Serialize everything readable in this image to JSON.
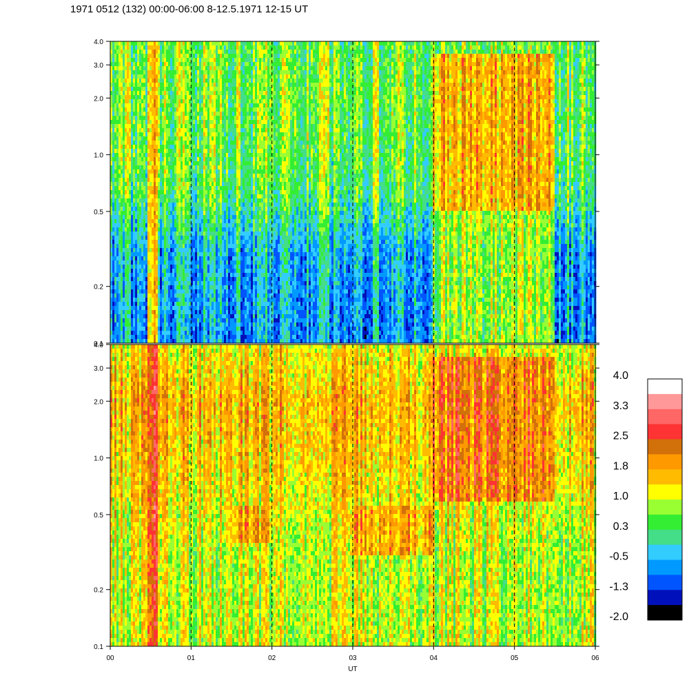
{
  "title": "1971 0512 (132) 00:00-06:00 8-12.5.1971  12-15 UT",
  "chart_data": {
    "type": "heatmap",
    "xlabel": "UT",
    "x_tick_labels": [
      "00",
      "01",
      "02",
      "03",
      "04",
      "05",
      "06"
    ],
    "x_ticks": [
      0,
      1,
      2,
      3,
      4,
      5,
      6
    ],
    "x_range": [
      0,
      6
    ],
    "y_scale": "log",
    "y_range": [
      0.1,
      4.0
    ],
    "y_ticks": [
      0.1,
      0.2,
      0.5,
      1.0,
      2.0,
      3.0,
      4.0
    ],
    "y_tick_labels": [
      "0.1",
      "0.2",
      "0.5",
      "1.0",
      "2.0",
      "3.0",
      "4.0"
    ],
    "vertical_dashed_lines_at": [
      1,
      2,
      3,
      4,
      5
    ],
    "colorbar": {
      "range": [
        -2.0,
        4.0
      ],
      "tick_labels": [
        "4.0",
        "3.3",
        "2.5",
        "1.8",
        "1.0",
        "0.3",
        "-0.5",
        "-1.3",
        "-2.0"
      ],
      "colors_top_to_bottom": [
        "#ffffff",
        "#ff9999",
        "#ff6666",
        "#ff3333",
        "#d2700a",
        "#ff9900",
        "#ffbb00",
        "#ffff00",
        "#99ff33",
        "#33ee33",
        "#44dd88",
        "#33ccff",
        "#0099ff",
        "#0055ff",
        "#0011bb",
        "#000000"
      ]
    },
    "panels": [
      {
        "name": "upper",
        "background_levels": [
          {
            "y": 0.1,
            "level": -0.6
          },
          {
            "y": 0.3,
            "level": -0.4
          },
          {
            "y": 0.6,
            "level": 0.4
          },
          {
            "y": 1.0,
            "level": 0.6
          },
          {
            "y": 2.0,
            "level": 0.7
          },
          {
            "y": 4.0,
            "level": 0.6
          }
        ],
        "features": [
          {
            "x": [
              0.45,
              0.58
            ],
            "y": [
              0.1,
              4.0
            ],
            "level": 1.8
          },
          {
            "x": [
              4.0,
              5.5
            ],
            "y": [
              0.5,
              3.5
            ],
            "level": 1.9
          },
          {
            "x": [
              4.0,
              5.5
            ],
            "y": [
              0.1,
              0.5
            ],
            "level": 1.0
          }
        ]
      },
      {
        "name": "lower",
        "background_levels": [
          {
            "y": 0.1,
            "level": 1.0
          },
          {
            "y": 0.3,
            "level": 1.0
          },
          {
            "y": 0.5,
            "level": 1.2
          },
          {
            "y": 1.0,
            "level": 1.5
          },
          {
            "y": 2.0,
            "level": 1.7
          },
          {
            "y": 4.0,
            "level": 1.2
          }
        ],
        "features": [
          {
            "x": [
              0.45,
              0.58
            ],
            "y": [
              0.1,
              4.0
            ],
            "level": 3.0
          },
          {
            "x": [
              4.0,
              5.5
            ],
            "y": [
              0.6,
              3.5
            ],
            "level": 2.3
          },
          {
            "x": [
              1.5,
              2.0
            ],
            "y": [
              0.35,
              0.55
            ],
            "level": 1.8
          },
          {
            "x": [
              3.0,
              4.0
            ],
            "y": [
              0.3,
              0.55
            ],
            "level": 1.9
          }
        ]
      }
    ]
  }
}
